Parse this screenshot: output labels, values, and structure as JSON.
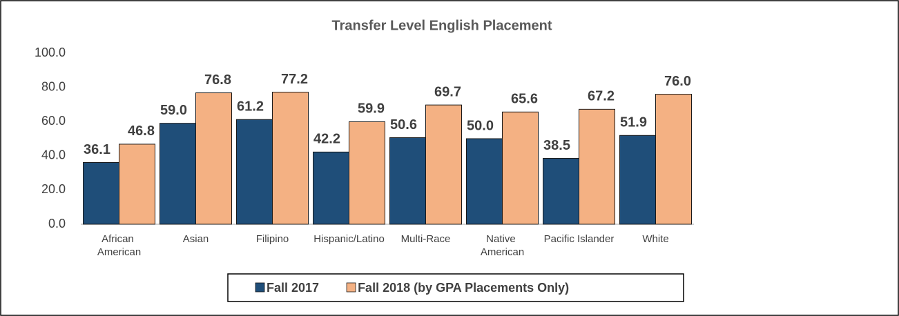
{
  "chart_data": {
    "type": "bar",
    "title": "Transfer Level English Placement",
    "categories": [
      "African American",
      "Asian",
      "Filipino",
      "Hispanic/Latino",
      "Multi-Race",
      "Native American",
      "Pacific Islander",
      "White"
    ],
    "series": [
      {
        "name": "Fall 2017",
        "color": "#1f4e79",
        "values": [
          36.1,
          59.0,
          61.2,
          42.2,
          50.6,
          50.0,
          38.5,
          51.9
        ],
        "value_labels": [
          "36.1",
          "59.0",
          "61.2",
          "42.2",
          "50.6",
          "50.0",
          "38.5",
          "51.9"
        ]
      },
      {
        "name": "Fall 2018 (by GPA Placements Only)",
        "color": "#f4b183",
        "values": [
          46.8,
          76.8,
          77.2,
          59.9,
          69.7,
          65.6,
          67.2,
          76.0
        ],
        "value_labels": [
          "46.8",
          "76.8",
          "77.2",
          "59.9",
          "69.7",
          "65.6",
          "67.2",
          "76.0"
        ]
      }
    ],
    "ylim": [
      0,
      100
    ],
    "yticks": [
      {
        "value": 0,
        "label": "0.0"
      },
      {
        "value": 20,
        "label": "20.0"
      },
      {
        "value": 40,
        "label": "40.0"
      },
      {
        "value": 60,
        "label": "60.0"
      },
      {
        "value": 80,
        "label": "80.0"
      },
      {
        "value": 100,
        "label": "100.0"
      }
    ],
    "grid": false,
    "legend": "bottom"
  }
}
